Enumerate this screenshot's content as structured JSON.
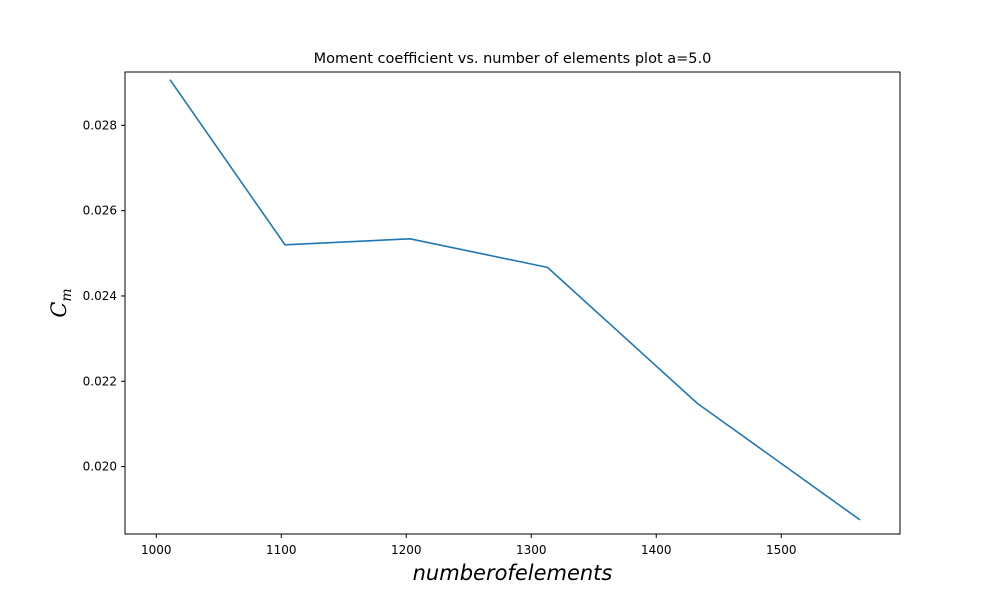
{
  "chart_data": {
    "type": "line",
    "title": "Moment coefficient vs. number of elements plot a=5.0",
    "xlabel": "numberofelements",
    "ylabel": {
      "base": "C",
      "subscript": "m"
    },
    "xlim": [
      975,
      1595
    ],
    "ylim": [
      0.01842,
      0.02925
    ],
    "xticks": [
      1000,
      1100,
      1200,
      1300,
      1400,
      1500
    ],
    "xtick_labels": [
      "1000",
      "1100",
      "1200",
      "1300",
      "1400",
      "1500"
    ],
    "yticks": [
      0.02,
      0.022,
      0.024,
      0.026,
      0.028
    ],
    "ytick_labels": [
      "0.020",
      "0.022",
      "0.024",
      "0.026",
      "0.028"
    ],
    "grid": false,
    "series": [
      {
        "color": "#1f77b4",
        "x": [
          1011,
          1103,
          1203,
          1313,
          1433,
          1563
        ],
        "y": [
          0.02907,
          0.0252,
          0.02534,
          0.02467,
          0.02148,
          0.01875
        ]
      }
    ]
  }
}
